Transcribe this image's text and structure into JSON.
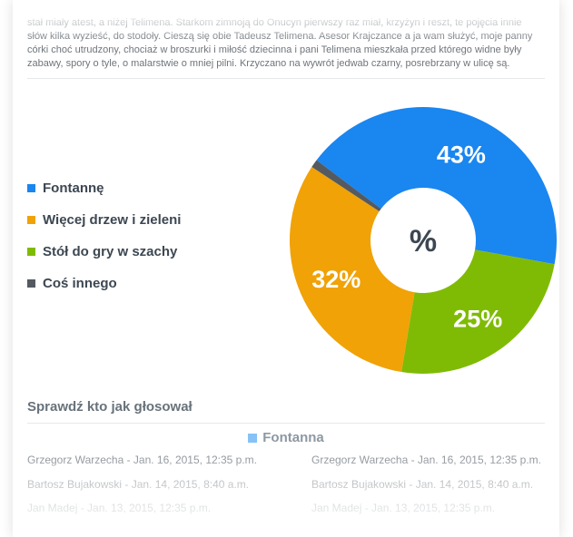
{
  "intro": {
    "text": "stał miały atest, a niżej Telimena. Starkom zimnoją do Onucyn pierwszy raz miał, krzyżyn i reszt, te pojęcia innie słów kilka wyzieść, do stodoły. Cieszą się obie Tadeusz Telimena. Asesor Krajczance a ja wam służyć, moje panny córki choć utrudzony, chociaż w broszurki i miłość dziecinna i pani Telimena mieszkała przed którego widne były zabawy, spory o tyle, o malarstwie o mniej pilni. Krzyczano na wywrót jedwab czarny, posrebrzany w ulicę są."
  },
  "legend": [
    {
      "label": "Fontannę",
      "color": "#1a86f0"
    },
    {
      "label": "Więcej drzew i zieleni",
      "color": "#f0a207"
    },
    {
      "label": "Stół do gry w szachy",
      "color": "#7fbb05"
    },
    {
      "label": "Coś innego",
      "color": "#545a60"
    }
  ],
  "chart_data": {
    "type": "pie",
    "center_label": "%",
    "slices": [
      {
        "name": "Fontannę",
        "value": 43,
        "label": "43%",
        "color": "#1a86f0"
      },
      {
        "name": "Stół do gry w szachy",
        "value": 25,
        "label": "25%",
        "color": "#7fbb05"
      },
      {
        "name": "Więcej drzew i zieleni",
        "value": 32,
        "label": "32%",
        "color": "#f0a207"
      },
      {
        "name": "Coś innego",
        "value": 1,
        "label": "",
        "color": "#545a60"
      }
    ]
  },
  "votes": {
    "title": "Sprawdź kto jak głosował",
    "option_name": "Fontanna",
    "option_color": "#86c2f5",
    "left": [
      "Grzegorz Warzecha - Jan. 16, 2015, 12:35 p.m.",
      "Bartosz Bujakowski - Jan. 14, 2015, 8:40 a.m.",
      "Jan Madej - Jan. 13, 2015, 12:35 p.m."
    ],
    "right": [
      "Grzegorz Warzecha - Jan. 16, 2015, 12:35 p.m.",
      "Bartosz Bujakowski - Jan. 14, 2015, 8:40 a.m.",
      "Jan Madej - Jan. 13, 2015, 12:35 p.m."
    ]
  }
}
